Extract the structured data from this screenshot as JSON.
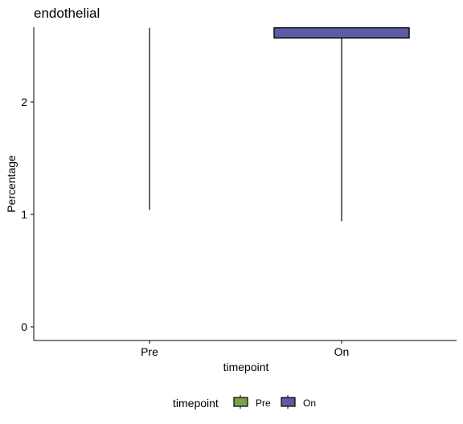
{
  "chart_data": {
    "type": "boxplot",
    "title": "endothelial",
    "xlabel": "timepoint",
    "ylabel": "Percentage",
    "categories": [
      "Pre",
      "On"
    ],
    "yticks": [
      0,
      1,
      2
    ],
    "ylim": [
      -0.12,
      2.66
    ],
    "grid": false,
    "series": [
      {
        "category": "Pre",
        "lower_whisker": 1.04,
        "upper_whisker": 2.66,
        "q1": null,
        "q3": null,
        "median": null
      },
      {
        "category": "On",
        "lower_whisker": 0.94,
        "upper_whisker": 2.66,
        "q1": 2.57,
        "q3": 2.66,
        "median": null
      }
    ],
    "legend": {
      "title": "timepoint",
      "position": "bottom",
      "entries": [
        {
          "label": "Pre",
          "color": "#7aa14e"
        },
        {
          "label": "On",
          "color": "#5c5ca6"
        }
      ]
    }
  }
}
